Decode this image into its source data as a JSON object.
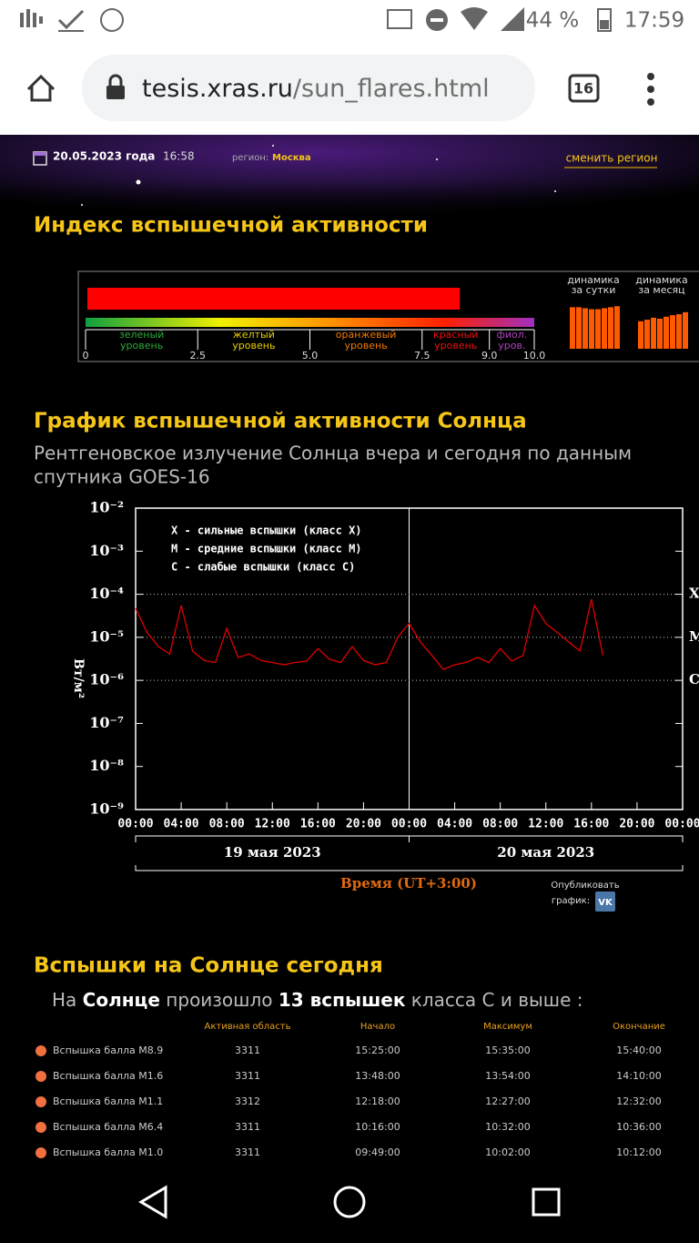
{
  "status_bar": {
    "battery": "44 %",
    "time": "17:59"
  },
  "browser": {
    "url_host": "tesis.xras.ru",
    "url_path": "/sun_flares.html",
    "tabs": 16
  },
  "header": {
    "date": "20.05.2023 года",
    "time": "16:58",
    "region_label": "регион:",
    "region": "Москва",
    "change_region": "сменить регион"
  },
  "index_section": {
    "title": "Индекс вспышечной активности",
    "value": 8.3,
    "xlim": [
      0,
      10
    ],
    "xticks": [
      0,
      2.5,
      {
        "value": 5,
        "label": "5.0"
      },
      7.5,
      {
        "value": 9,
        "label": "9.0"
      },
      {
        "value": 10,
        "label": "10.0"
      }
    ],
    "levels": [
      {
        "lines": [
          "зеленый",
          "уровень"
        ],
        "color": "#2eaa3a"
      },
      {
        "lines": [
          "желтый",
          "уровень"
        ],
        "color": "#e8d000"
      },
      {
        "lines": [
          "оранжевый",
          "уровень"
        ],
        "color": "#f07800"
      },
      {
        "lines": [
          "красный",
          "уровень"
        ],
        "color": "#e81010"
      },
      {
        "lines": [
          "фиол.",
          "уров."
        ],
        "color": "#b040c0"
      }
    ],
    "bar_color": "#ff0000",
    "dynamics": {
      "ylim": [
        0,
        10
      ],
      "color": "#ff5a00",
      "day": {
        "title": [
          "динамика",
          "за сутки"
        ],
        "values": [
          8.3,
          8.3,
          8.1,
          7.9,
          7.9,
          8.1,
          8.3,
          8.5
        ]
      },
      "month": {
        "title": [
          "динамика",
          "за месяц"
        ],
        "values": [
          5.5,
          5.8,
          6.2,
          6.0,
          6.4,
          6.7,
          6.9,
          7.3
        ]
      }
    }
  },
  "flare_chart": {
    "type": "line",
    "title": "График вспышечной активности Солнца",
    "subtitle": [
      "Рентгеновское излучение Солнца вчера и сегодня по данным",
      "спутника GOES-16"
    ],
    "ylabel": "Вт/м²",
    "log": true,
    "ylim": [
      1e-09,
      0.01
    ],
    "yticks": [
      {
        "value": 0.01,
        "label": "10⁻²"
      },
      {
        "value": 0.001,
        "label": "10⁻³"
      },
      {
        "value": 0.0001,
        "label": "10⁻⁴"
      },
      {
        "value": 1e-05,
        "label": "10⁻⁵"
      },
      {
        "value": 1e-06,
        "label": "10⁻⁶"
      },
      {
        "value": 1e-07,
        "label": "10⁻⁷"
      },
      {
        "value": 1e-08,
        "label": "10⁻⁸"
      },
      {
        "value": 1e-09,
        "label": "10⁻⁹"
      }
    ],
    "xlim": [
      0,
      48
    ],
    "xticks": [
      {
        "value": 0,
        "label": "00:00"
      },
      {
        "value": 4,
        "label": "04:00"
      },
      {
        "value": 8,
        "label": "08:00"
      },
      {
        "value": 12,
        "label": "12:00"
      },
      {
        "value": 16,
        "label": "16:00"
      },
      {
        "value": 20,
        "label": "20:00"
      },
      {
        "value": 24,
        "label": "00:00"
      },
      {
        "value": 28,
        "label": "04:00"
      },
      {
        "value": 32,
        "label": "08:00"
      },
      {
        "value": 36,
        "label": "12:00"
      },
      {
        "value": 40,
        "label": "16:00"
      },
      {
        "value": 44,
        "label": "20:00"
      },
      {
        "value": 48,
        "label": "00:00"
      }
    ],
    "class_lines": [
      {
        "value": 0.0001,
        "label": "X"
      },
      {
        "value": 1e-05,
        "label": "M"
      },
      {
        "value": 1e-06,
        "label": "C"
      }
    ],
    "legend": [
      "X - сильные вспышки (класс X)",
      "M - средние вспышки (класс M)",
      "C - слабые вспышки (класс C)"
    ],
    "dates": [
      "19 мая 2023",
      "20 мая 2023"
    ],
    "xlabel": "Время (UT+3:00)",
    "color": "#e00000",
    "series": [
      {
        "x": [
          0,
          1,
          2,
          3,
          4,
          5,
          6,
          7,
          8,
          9,
          10,
          11,
          12,
          13,
          14,
          15,
          16,
          17,
          18,
          19,
          20,
          21,
          22,
          23,
          24,
          25,
          26,
          27,
          28,
          29,
          30,
          31,
          32,
          33,
          34,
          35,
          36,
          37,
          38,
          39,
          40,
          41
        ],
        "values": [
          4.7e-05,
          1.3e-05,
          6.1e-06,
          4.1e-06,
          5.5e-05,
          4.8e-06,
          2.9e-06,
          2.6e-06,
          1.6e-05,
          3.4e-06,
          4.1e-06,
          2.9e-06,
          2.6e-06,
          2.3e-06,
          2.6e-06,
          2.8e-06,
          5.5e-06,
          3.1e-06,
          2.6e-06,
          6.1e-06,
          2.9e-06,
          2.3e-06,
          2.6e-06,
          1e-05,
          2.1e-05,
          7.8e-06,
          3.8e-06,
          1.8e-06,
          2.3e-06,
          2.6e-06,
          3.4e-06,
          2.6e-06,
          5.5e-06,
          2.8e-06,
          3.8e-06,
          5.5e-05,
          2.1e-05,
          1.3e-05,
          7.8e-06,
          4.8e-06,
          7.7e-05,
          3.8e-06
        ]
      }
    ]
  },
  "publish": {
    "lines": [
      "Опубликовать",
      "график:"
    ]
  },
  "flares": {
    "title": "Вспышки на Солнце сегодня",
    "summary": [
      {
        "text": "На ",
        "bold": false
      },
      {
        "text": "Солнце",
        "bold": true
      },
      {
        "text": " произошло ",
        "bold": false
      },
      {
        "text": "13 вспышек",
        "bold": true
      },
      {
        "text": " класса С и выше :",
        "bold": false
      }
    ],
    "columns": [
      "Активная область",
      "Начало",
      "Максимум",
      "Окончание"
    ],
    "rows": [
      [
        "Вспышка балла M8.9",
        "3311",
        "15:25:00",
        "15:35:00",
        "15:40:00"
      ],
      [
        "Вспышка балла M1.6",
        "3311",
        "13:48:00",
        "13:54:00",
        "14:10:00"
      ],
      [
        "Вспышка балла M1.1",
        "3312",
        "12:18:00",
        "12:27:00",
        "12:32:00"
      ],
      [
        "Вспышка балла M6.4",
        "3311",
        "10:16:00",
        "10:32:00",
        "10:36:00"
      ],
      [
        "Вспышка балла M1.0",
        "3311",
        "09:49:00",
        "10:02:00",
        "10:12:00"
      ]
    ]
  }
}
